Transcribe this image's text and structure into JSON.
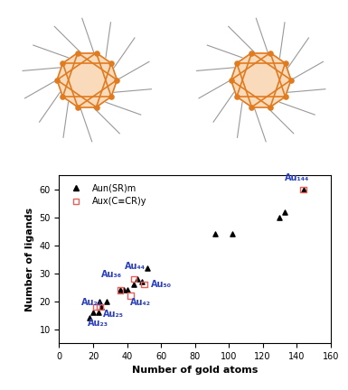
{
  "chart_data": {
    "type": "scatter",
    "x_label": "Number of gold atoms",
    "y_label": "Number of ligands",
    "xlim": [
      0,
      160
    ],
    "xticks": [
      0,
      20,
      40,
      60,
      80,
      100,
      120,
      140,
      160
    ],
    "ylim": [
      5,
      65
    ],
    "yticks": [
      10,
      20,
      30,
      40,
      50,
      60
    ],
    "legend": "upper left",
    "series": [
      {
        "name": "Aun(SR)m",
        "color": "#000000",
        "marker": "triangle",
        "x": [
          18,
          20,
          23,
          24,
          25,
          28,
          36,
          38,
          40,
          44,
          46,
          49,
          52,
          92,
          102,
          130,
          133,
          144
        ],
        "values": [
          14,
          16,
          16,
          20,
          18,
          20,
          24,
          24,
          24,
          26,
          28,
          27,
          32,
          44,
          44,
          50,
          52,
          60
        ]
      },
      {
        "name": "Aux(C≡CR)y",
        "color": "#e8605a",
        "marker": "square",
        "x": [
          22,
          24,
          36,
          42,
          44,
          50,
          144
        ],
        "values": [
          18,
          18,
          24,
          22,
          28,
          26,
          60
        ]
      }
    ],
    "annotations": [
      {
        "text": "Au₂₂",
        "x": 19,
        "y": 19.5,
        "color": "#2a3fbf"
      },
      {
        "text": "Au₂₃",
        "x": 23,
        "y": 12,
        "color": "#2a3fbf"
      },
      {
        "text": "Au₂₅",
        "x": 32,
        "y": 15.5,
        "color": "#2a3fbf"
      },
      {
        "text": "Au₃₆",
        "x": 31,
        "y": 29.5,
        "color": "#2a3fbf"
      },
      {
        "text": "Au₄₄",
        "x": 45,
        "y": 32.5,
        "color": "#2a3fbf"
      },
      {
        "text": "Au₄₂",
        "x": 48,
        "y": 19.5,
        "color": "#2a3fbf"
      },
      {
        "text": "Au₅₀",
        "x": 60,
        "y": 26,
        "color": "#2a3fbf"
      },
      {
        "text": "Au₁₄₄",
        "x": 140,
        "y": 64,
        "color": "#2a3fbf"
      }
    ]
  }
}
